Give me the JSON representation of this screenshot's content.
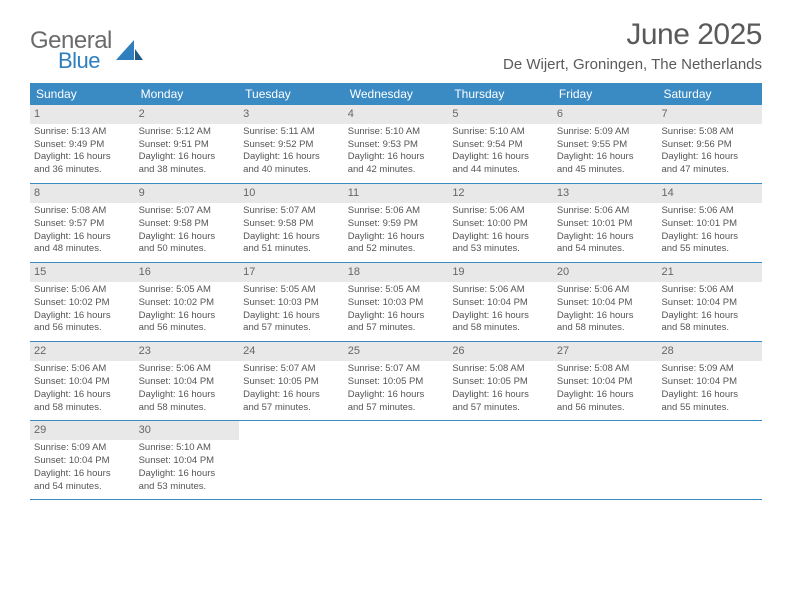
{
  "logo": {
    "text1": "General",
    "text2": "Blue"
  },
  "title": "June 2025",
  "location": "De Wijert, Groningen, The Netherlands",
  "colors": {
    "header_bg": "#3a8ac4",
    "daynum_bg": "#e8e8e8",
    "text": "#555555",
    "title": "#5a5a5a",
    "logo_gray": "#6b6b6b",
    "logo_blue": "#2f7fbf",
    "border": "#3a8ac4"
  },
  "weekdays": [
    "Sunday",
    "Monday",
    "Tuesday",
    "Wednesday",
    "Thursday",
    "Friday",
    "Saturday"
  ],
  "weeks": [
    [
      {
        "n": "1",
        "sunrise": "Sunrise: 5:13 AM",
        "sunset": "Sunset: 9:49 PM",
        "day1": "Daylight: 16 hours",
        "day2": "and 36 minutes."
      },
      {
        "n": "2",
        "sunrise": "Sunrise: 5:12 AM",
        "sunset": "Sunset: 9:51 PM",
        "day1": "Daylight: 16 hours",
        "day2": "and 38 minutes."
      },
      {
        "n": "3",
        "sunrise": "Sunrise: 5:11 AM",
        "sunset": "Sunset: 9:52 PM",
        "day1": "Daylight: 16 hours",
        "day2": "and 40 minutes."
      },
      {
        "n": "4",
        "sunrise": "Sunrise: 5:10 AM",
        "sunset": "Sunset: 9:53 PM",
        "day1": "Daylight: 16 hours",
        "day2": "and 42 minutes."
      },
      {
        "n": "5",
        "sunrise": "Sunrise: 5:10 AM",
        "sunset": "Sunset: 9:54 PM",
        "day1": "Daylight: 16 hours",
        "day2": "and 44 minutes."
      },
      {
        "n": "6",
        "sunrise": "Sunrise: 5:09 AM",
        "sunset": "Sunset: 9:55 PM",
        "day1": "Daylight: 16 hours",
        "day2": "and 45 minutes."
      },
      {
        "n": "7",
        "sunrise": "Sunrise: 5:08 AM",
        "sunset": "Sunset: 9:56 PM",
        "day1": "Daylight: 16 hours",
        "day2": "and 47 minutes."
      }
    ],
    [
      {
        "n": "8",
        "sunrise": "Sunrise: 5:08 AM",
        "sunset": "Sunset: 9:57 PM",
        "day1": "Daylight: 16 hours",
        "day2": "and 48 minutes."
      },
      {
        "n": "9",
        "sunrise": "Sunrise: 5:07 AM",
        "sunset": "Sunset: 9:58 PM",
        "day1": "Daylight: 16 hours",
        "day2": "and 50 minutes."
      },
      {
        "n": "10",
        "sunrise": "Sunrise: 5:07 AM",
        "sunset": "Sunset: 9:58 PM",
        "day1": "Daylight: 16 hours",
        "day2": "and 51 minutes."
      },
      {
        "n": "11",
        "sunrise": "Sunrise: 5:06 AM",
        "sunset": "Sunset: 9:59 PM",
        "day1": "Daylight: 16 hours",
        "day2": "and 52 minutes."
      },
      {
        "n": "12",
        "sunrise": "Sunrise: 5:06 AM",
        "sunset": "Sunset: 10:00 PM",
        "day1": "Daylight: 16 hours",
        "day2": "and 53 minutes."
      },
      {
        "n": "13",
        "sunrise": "Sunrise: 5:06 AM",
        "sunset": "Sunset: 10:01 PM",
        "day1": "Daylight: 16 hours",
        "day2": "and 54 minutes."
      },
      {
        "n": "14",
        "sunrise": "Sunrise: 5:06 AM",
        "sunset": "Sunset: 10:01 PM",
        "day1": "Daylight: 16 hours",
        "day2": "and 55 minutes."
      }
    ],
    [
      {
        "n": "15",
        "sunrise": "Sunrise: 5:06 AM",
        "sunset": "Sunset: 10:02 PM",
        "day1": "Daylight: 16 hours",
        "day2": "and 56 minutes."
      },
      {
        "n": "16",
        "sunrise": "Sunrise: 5:05 AM",
        "sunset": "Sunset: 10:02 PM",
        "day1": "Daylight: 16 hours",
        "day2": "and 56 minutes."
      },
      {
        "n": "17",
        "sunrise": "Sunrise: 5:05 AM",
        "sunset": "Sunset: 10:03 PM",
        "day1": "Daylight: 16 hours",
        "day2": "and 57 minutes."
      },
      {
        "n": "18",
        "sunrise": "Sunrise: 5:05 AM",
        "sunset": "Sunset: 10:03 PM",
        "day1": "Daylight: 16 hours",
        "day2": "and 57 minutes."
      },
      {
        "n": "19",
        "sunrise": "Sunrise: 5:06 AM",
        "sunset": "Sunset: 10:04 PM",
        "day1": "Daylight: 16 hours",
        "day2": "and 58 minutes."
      },
      {
        "n": "20",
        "sunrise": "Sunrise: 5:06 AM",
        "sunset": "Sunset: 10:04 PM",
        "day1": "Daylight: 16 hours",
        "day2": "and 58 minutes."
      },
      {
        "n": "21",
        "sunrise": "Sunrise: 5:06 AM",
        "sunset": "Sunset: 10:04 PM",
        "day1": "Daylight: 16 hours",
        "day2": "and 58 minutes."
      }
    ],
    [
      {
        "n": "22",
        "sunrise": "Sunrise: 5:06 AM",
        "sunset": "Sunset: 10:04 PM",
        "day1": "Daylight: 16 hours",
        "day2": "and 58 minutes."
      },
      {
        "n": "23",
        "sunrise": "Sunrise: 5:06 AM",
        "sunset": "Sunset: 10:04 PM",
        "day1": "Daylight: 16 hours",
        "day2": "and 58 minutes."
      },
      {
        "n": "24",
        "sunrise": "Sunrise: 5:07 AM",
        "sunset": "Sunset: 10:05 PM",
        "day1": "Daylight: 16 hours",
        "day2": "and 57 minutes."
      },
      {
        "n": "25",
        "sunrise": "Sunrise: 5:07 AM",
        "sunset": "Sunset: 10:05 PM",
        "day1": "Daylight: 16 hours",
        "day2": "and 57 minutes."
      },
      {
        "n": "26",
        "sunrise": "Sunrise: 5:08 AM",
        "sunset": "Sunset: 10:05 PM",
        "day1": "Daylight: 16 hours",
        "day2": "and 57 minutes."
      },
      {
        "n": "27",
        "sunrise": "Sunrise: 5:08 AM",
        "sunset": "Sunset: 10:04 PM",
        "day1": "Daylight: 16 hours",
        "day2": "and 56 minutes."
      },
      {
        "n": "28",
        "sunrise": "Sunrise: 5:09 AM",
        "sunset": "Sunset: 10:04 PM",
        "day1": "Daylight: 16 hours",
        "day2": "and 55 minutes."
      }
    ],
    [
      {
        "n": "29",
        "sunrise": "Sunrise: 5:09 AM",
        "sunset": "Sunset: 10:04 PM",
        "day1": "Daylight: 16 hours",
        "day2": "and 54 minutes."
      },
      {
        "n": "30",
        "sunrise": "Sunrise: 5:10 AM",
        "sunset": "Sunset: 10:04 PM",
        "day1": "Daylight: 16 hours",
        "day2": "and 53 minutes."
      },
      null,
      null,
      null,
      null,
      null
    ]
  ]
}
